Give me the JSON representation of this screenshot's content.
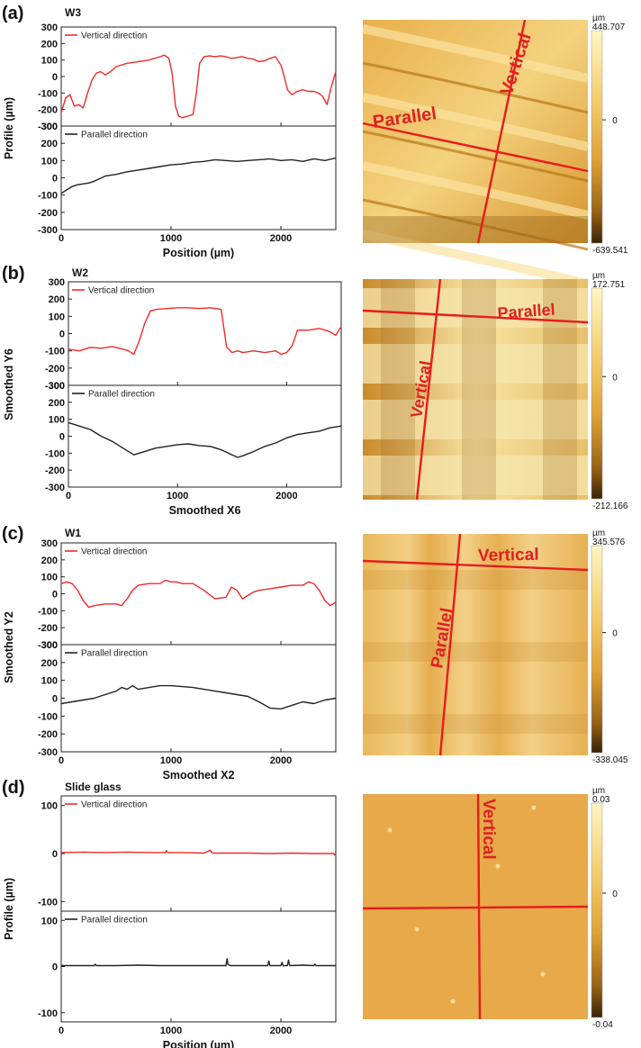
{
  "chart_data": [
    {
      "type": "line",
      "panel_label": "(a)",
      "sample_label": "W3",
      "xlabel": "Position (µm)",
      "ylabel": "Profile (µm)",
      "xlim": [
        0,
        2500
      ],
      "xticks": [
        0,
        1000,
        2000
      ],
      "ylim": [
        -300,
        300
      ],
      "yticks": [
        -300,
        -200,
        -100,
        0,
        100,
        200,
        300
      ],
      "series": [
        {
          "name": "Vertical direction",
          "color": "#ee2a2a",
          "x": [
            0,
            40,
            80,
            120,
            160,
            200,
            240,
            280,
            320,
            360,
            400,
            450,
            500,
            550,
            600,
            650,
            700,
            750,
            800,
            850,
            900,
            940,
            980,
            1010,
            1040,
            1070,
            1100,
            1150,
            1200,
            1230,
            1260,
            1300,
            1350,
            1400,
            1450,
            1500,
            1550,
            1600,
            1650,
            1700,
            1750,
            1800,
            1850,
            1900,
            1950,
            2000,
            2030,
            2060,
            2100,
            2150,
            2200,
            2250,
            2300,
            2340,
            2380,
            2420,
            2460,
            2500
          ],
          "y": [
            -220,
            -130,
            -110,
            -180,
            -170,
            -190,
            -100,
            -20,
            20,
            30,
            10,
            30,
            60,
            70,
            80,
            85,
            90,
            95,
            100,
            110,
            120,
            130,
            110,
            20,
            -180,
            -240,
            -250,
            -240,
            -230,
            -100,
            80,
            120,
            125,
            120,
            125,
            120,
            110,
            115,
            120,
            110,
            105,
            90,
            95,
            110,
            120,
            70,
            0,
            -80,
            -110,
            -90,
            -80,
            -90,
            -90,
            -100,
            -120,
            -170,
            -60,
            30
          ]
        },
        {
          "name": "Parallel direction",
          "color": "#222222",
          "x": [
            0,
            50,
            100,
            150,
            200,
            250,
            300,
            350,
            400,
            450,
            500,
            600,
            700,
            800,
            900,
            1000,
            1100,
            1200,
            1300,
            1400,
            1500,
            1600,
            1700,
            1800,
            1900,
            2000,
            2100,
            2200,
            2300,
            2400,
            2500
          ],
          "y": [
            -90,
            -70,
            -50,
            -40,
            -35,
            -30,
            -20,
            -5,
            10,
            15,
            20,
            35,
            45,
            55,
            65,
            75,
            80,
            90,
            95,
            105,
            100,
            95,
            100,
            105,
            110,
            100,
            105,
            95,
            110,
            100,
            115
          ]
        }
      ],
      "map": {
        "colorbar_unit": "µm",
        "colorbar_max": "448.707",
        "colorbar_zero": "0",
        "colorbar_min": "-639.541",
        "line_labels": [
          "Parallel",
          "Vertical"
        ]
      }
    },
    {
      "type": "line",
      "panel_label": "(b)",
      "sample_label": "W2",
      "xlabel": "Smoothed X6",
      "ylabel": "Smoothed Y6",
      "xlim": [
        0,
        2500
      ],
      "xticks": [
        0,
        1000,
        2000
      ],
      "ylim": [
        -300,
        300
      ],
      "yticks": [
        -300,
        -200,
        -100,
        0,
        100,
        200,
        300
      ],
      "series": [
        {
          "name": "Vertical direction",
          "color": "#ee2a2a",
          "x": [
            0,
            100,
            200,
            300,
            400,
            500,
            550,
            600,
            650,
            700,
            750,
            800,
            900,
            1000,
            1100,
            1200,
            1300,
            1400,
            1450,
            1500,
            1550,
            1600,
            1700,
            1800,
            1900,
            1950,
            2000,
            2050,
            2100,
            2200,
            2300,
            2400,
            2450,
            2500
          ],
          "y": [
            -90,
            -100,
            -80,
            -85,
            -75,
            -90,
            -100,
            -120,
            -40,
            60,
            130,
            140,
            145,
            150,
            150,
            145,
            150,
            140,
            -80,
            -110,
            -100,
            -110,
            -100,
            -110,
            -100,
            -120,
            -110,
            -70,
            20,
            20,
            30,
            10,
            -10,
            40
          ]
        },
        {
          "name": "Parallel direction",
          "color": "#222222",
          "x": [
            0,
            100,
            200,
            300,
            400,
            500,
            600,
            700,
            800,
            900,
            1000,
            1100,
            1200,
            1300,
            1400,
            1500,
            1550,
            1600,
            1700,
            1800,
            1900,
            2000,
            2100,
            2200,
            2300,
            2400,
            2500
          ],
          "y": [
            80,
            60,
            40,
            0,
            -30,
            -70,
            -110,
            -90,
            -70,
            -60,
            -50,
            -45,
            -55,
            -60,
            -80,
            -110,
            -125,
            -115,
            -90,
            -60,
            -40,
            -10,
            10,
            20,
            30,
            50,
            60
          ]
        }
      ],
      "map": {
        "colorbar_unit": "µm",
        "colorbar_max": "172.751",
        "colorbar_zero": "0",
        "colorbar_min": "-212.166",
        "line_labels": [
          "Parallel",
          "Vertical"
        ]
      }
    },
    {
      "type": "line",
      "panel_label": "(c)",
      "sample_label": "W1",
      "xlabel": "Smoothed X2",
      "ylabel": "Smoothed Y2",
      "xlim": [
        0,
        2500
      ],
      "xticks": [
        0,
        1000,
        2000
      ],
      "ylim": [
        -300,
        300
      ],
      "yticks": [
        -300,
        -200,
        -100,
        0,
        100,
        200,
        300
      ],
      "series": [
        {
          "name": "Vertical direction",
          "color": "#ee2a2a",
          "x": [
            0,
            50,
            100,
            150,
            200,
            250,
            300,
            400,
            500,
            550,
            600,
            650,
            700,
            800,
            900,
            950,
            1000,
            1050,
            1100,
            1200,
            1300,
            1400,
            1500,
            1550,
            1600,
            1650,
            1700,
            1750,
            1800,
            1900,
            2000,
            2100,
            2200,
            2250,
            2300,
            2350,
            2400,
            2450,
            2500
          ],
          "y": [
            60,
            70,
            60,
            20,
            -40,
            -80,
            -70,
            -60,
            -60,
            -70,
            -30,
            20,
            50,
            60,
            60,
            80,
            70,
            70,
            60,
            60,
            20,
            -30,
            -20,
            40,
            20,
            -30,
            -10,
            10,
            20,
            30,
            40,
            50,
            50,
            70,
            60,
            20,
            -40,
            -70,
            -50
          ]
        },
        {
          "name": "Parallel direction",
          "color": "#222222",
          "x": [
            0,
            100,
            200,
            300,
            400,
            500,
            550,
            600,
            650,
            700,
            800,
            900,
            1000,
            1100,
            1200,
            1300,
            1400,
            1500,
            1600,
            1700,
            1800,
            1900,
            2000,
            2100,
            2200,
            2300,
            2400,
            2500
          ],
          "y": [
            -30,
            -20,
            -10,
            0,
            20,
            40,
            60,
            50,
            70,
            50,
            60,
            70,
            70,
            65,
            60,
            50,
            40,
            30,
            20,
            10,
            -20,
            -55,
            -60,
            -40,
            -20,
            -30,
            -10,
            0
          ]
        }
      ],
      "map": {
        "colorbar_unit": "µm",
        "colorbar_max": "345.576",
        "colorbar_zero": "0",
        "colorbar_min": "-338.045",
        "line_labels": [
          "Vertical",
          "Parallel"
        ]
      }
    },
    {
      "type": "line",
      "panel_label": "(d)",
      "sample_label": "Slide glass",
      "xlabel": "Position (µm)",
      "ylabel": "Profile (µm)",
      "xlim": [
        0,
        2500
      ],
      "xticks": [
        0,
        1000,
        2000
      ],
      "ylim": [
        -120,
        120
      ],
      "yticks": [
        -100,
        0,
        100
      ],
      "series": [
        {
          "name": "Vertical direction",
          "color": "#ee2a2a",
          "x": [
            0,
            200,
            400,
            600,
            800,
            950,
            960,
            970,
            1100,
            1300,
            1360,
            1370,
            1380,
            1500,
            1700,
            1900,
            2100,
            2300,
            2480,
            2490,
            2500
          ],
          "y": [
            2,
            3,
            2,
            3,
            2,
            2,
            6,
            2,
            2,
            1,
            7,
            2,
            1,
            1,
            1,
            0,
            1,
            0,
            0,
            -3,
            1
          ]
        },
        {
          "name": "Parallel direction",
          "color": "#222222",
          "x": [
            0,
            150,
            300,
            310,
            320,
            500,
            700,
            900,
            1100,
            1300,
            1500,
            1510,
            1520,
            1540,
            1700,
            1880,
            1890,
            1900,
            2000,
            2010,
            2020,
            2060,
            2070,
            2080,
            2200,
            2300,
            2310,
            2320,
            2500
          ],
          "y": [
            2,
            2,
            2,
            5,
            2,
            2,
            3,
            2,
            2,
            2,
            2,
            17,
            4,
            2,
            2,
            2,
            12,
            2,
            2,
            9,
            2,
            2,
            14,
            2,
            3,
            2,
            5,
            2,
            2
          ]
        }
      ],
      "map": {
        "colorbar_unit": "µm",
        "colorbar_max": "0.03",
        "colorbar_zero": "0",
        "colorbar_min": "-0.04",
        "line_labels": [
          "Vertical"
        ]
      }
    }
  ]
}
